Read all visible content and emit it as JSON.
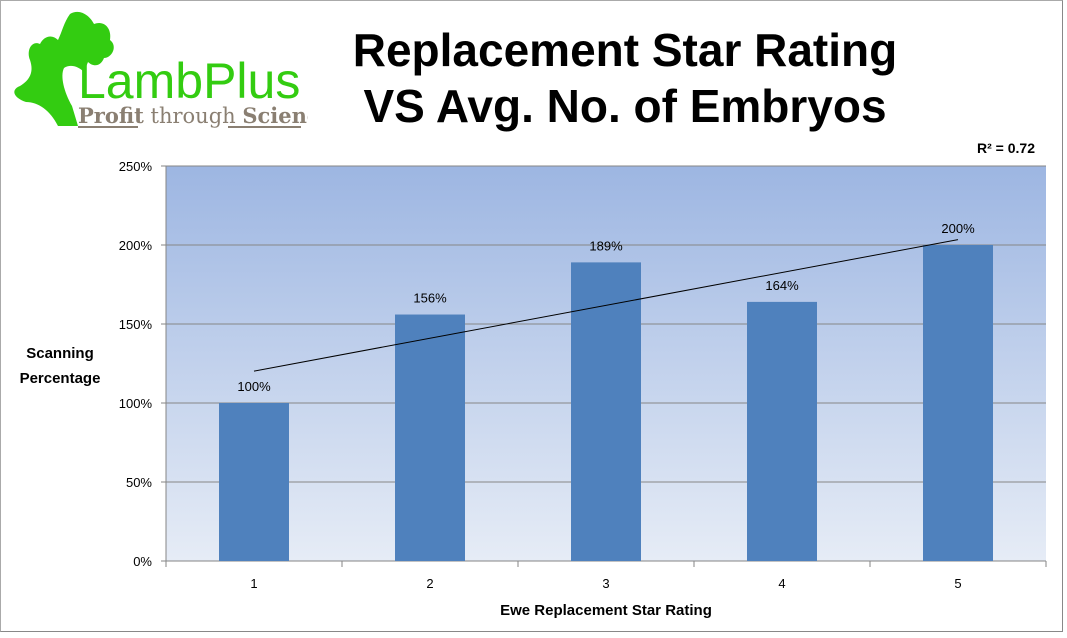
{
  "logo": {
    "brand": "LambPlus",
    "tagline_1": "Profit",
    "tagline_2": "through",
    "tagline_3": "Science"
  },
  "chart_data": {
    "type": "bar",
    "title_line1": "Replacement Star Rating",
    "title_line2": "VS Avg. No. of Embryos",
    "xlabel": "Ewe Replacement Star Rating",
    "ylabel_line1": "Scanning",
    "ylabel_line2": "Percentage",
    "categories": [
      "1",
      "2",
      "3",
      "4",
      "5"
    ],
    "values": [
      100,
      156,
      189,
      164,
      200
    ],
    "data_labels": [
      "100%",
      "156%",
      "189%",
      "164%",
      "200%"
    ],
    "ylim": [
      0,
      250
    ],
    "yticks": [
      0,
      50,
      100,
      150,
      200,
      250
    ],
    "ytick_labels": [
      "0%",
      "50%",
      "100%",
      "150%",
      "200%",
      "250%"
    ],
    "grid": true,
    "trendline": {
      "type": "linear",
      "r_squared_label": "R² = 0.72"
    },
    "colors": {
      "bar": "#4f81bd",
      "plot_top": "#9db6e2",
      "plot_bottom": "#e6ecf6",
      "trend": "#000000"
    }
  }
}
